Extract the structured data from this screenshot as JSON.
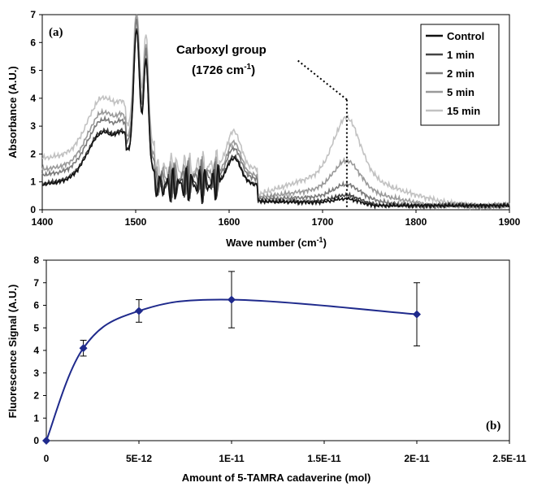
{
  "chart_data": [
    {
      "type": "line",
      "panel_label": "(a)",
      "xlabel": "Wave number (cm",
      "xlabel_sup": "-1",
      "xlabel_end": ")",
      "ylabel": "Absorbance (A.U.)",
      "xlim": [
        1400,
        1900
      ],
      "ylim": [
        0,
        7
      ],
      "x_ticks": [
        "1400",
        "1500",
        "1600",
        "1700",
        "1800",
        "1900"
      ],
      "y_ticks": [
        "0",
        "1",
        "2",
        "3",
        "4",
        "5",
        "6",
        "7"
      ],
      "grid": false,
      "legend_position": "top-right",
      "annotation": {
        "line1": "Carboxyl group",
        "line2_a": "(1726 cm",
        "line2_sup": "-1",
        "line2_b": ")",
        "x_value": 1726
      },
      "series": [
        {
          "name": "Control",
          "color": "#111111",
          "offset": 0.0,
          "carboxyl": 0.35,
          "fp": 0.95
        },
        {
          "name": "1 min",
          "color": "#444444",
          "offset": 0.05,
          "carboxyl": 0.5,
          "fp": 1.0
        },
        {
          "name": "2 min",
          "color": "#7a7a7a",
          "offset": 0.35,
          "carboxyl": 0.9,
          "fp": 1.1
        },
        {
          "name": "5 min",
          "color": "#9a9a9a",
          "offset": 0.55,
          "carboxyl": 1.9,
          "fp": 1.2
        },
        {
          "name": "15 min",
          "color": "#c2c2c2",
          "offset": 0.95,
          "carboxyl": 3.7,
          "fp": 1.35
        }
      ]
    },
    {
      "type": "scatter",
      "panel_label": "(b)",
      "xlabel": "Amount of 5-TAMRA cadaverine (mol)",
      "ylabel": "Fluorescence Signal (A.U.)",
      "xlim": [
        0,
        2.5e-11
      ],
      "ylim": [
        0,
        8
      ],
      "x_ticks": [
        "0",
        "5E-12",
        "1E-11",
        "1.5E-11",
        "2E-11",
        "2.5E-11"
      ],
      "y_ticks": [
        "0",
        "1",
        "2",
        "3",
        "4",
        "5",
        "6",
        "7",
        "8"
      ],
      "grid": false,
      "line_color": "#1f2a8c",
      "x": [
        0,
        2e-12,
        5e-12,
        1e-11,
        2e-11
      ],
      "y": [
        0.0,
        4.1,
        5.75,
        6.25,
        5.6
      ],
      "error": [
        0.0,
        0.35,
        0.5,
        1.25,
        1.4
      ]
    }
  ]
}
